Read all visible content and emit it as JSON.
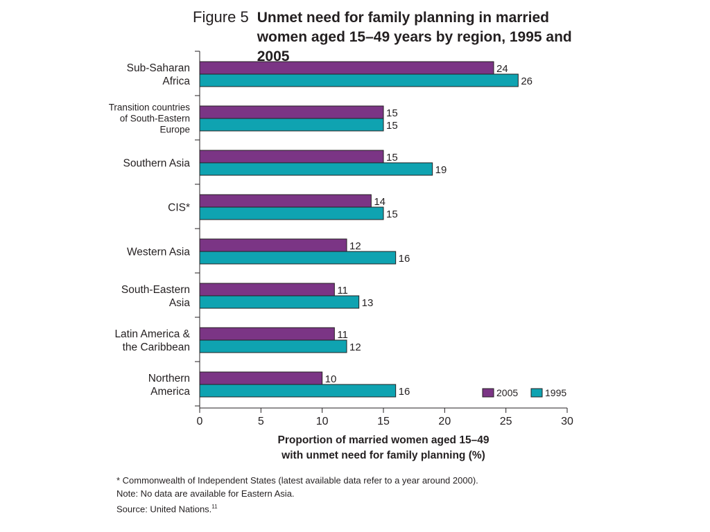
{
  "figure_label": "Figure 5",
  "title": "Unmet need for family planning in married women aged 15–49 years by region, 1995 and 2005",
  "chart_data": {
    "type": "bar",
    "orientation": "horizontal",
    "categories": [
      [
        "Sub-Saharan",
        "Africa"
      ],
      [
        "Transition countries",
        "of South-Eastern",
        "Europe"
      ],
      [
        "Southern Asia"
      ],
      [
        "CIS*"
      ],
      [
        "Western Asia"
      ],
      [
        "South-Eastern",
        "Asia"
      ],
      [
        "Latin America &",
        "the Caribbean"
      ],
      [
        "Northern",
        "America"
      ]
    ],
    "series": [
      {
        "name": "2005",
        "color": "#7b3585",
        "values": [
          24,
          15,
          15,
          14,
          12,
          11,
          11,
          10
        ]
      },
      {
        "name": "1995",
        "color": "#0fa3b1",
        "values": [
          26,
          15,
          19,
          15,
          16,
          13,
          12,
          16
        ]
      }
    ],
    "xlabel": [
      "Proportion of married women aged 15–49",
      "with unmet need for family planning (%)"
    ],
    "xlim": [
      0,
      30
    ],
    "xticks": [
      0,
      5,
      10,
      15,
      20,
      25,
      30
    ],
    "grid": false,
    "legend_position": "bottom-right"
  },
  "notes": {
    "cis": "* Commonwealth of Independent States (latest available data refer to a year around 2000).",
    "eastern_asia": "Note: No data are available for Eastern Asia.",
    "source": "Source: United Nations.",
    "source_ref": "11"
  }
}
